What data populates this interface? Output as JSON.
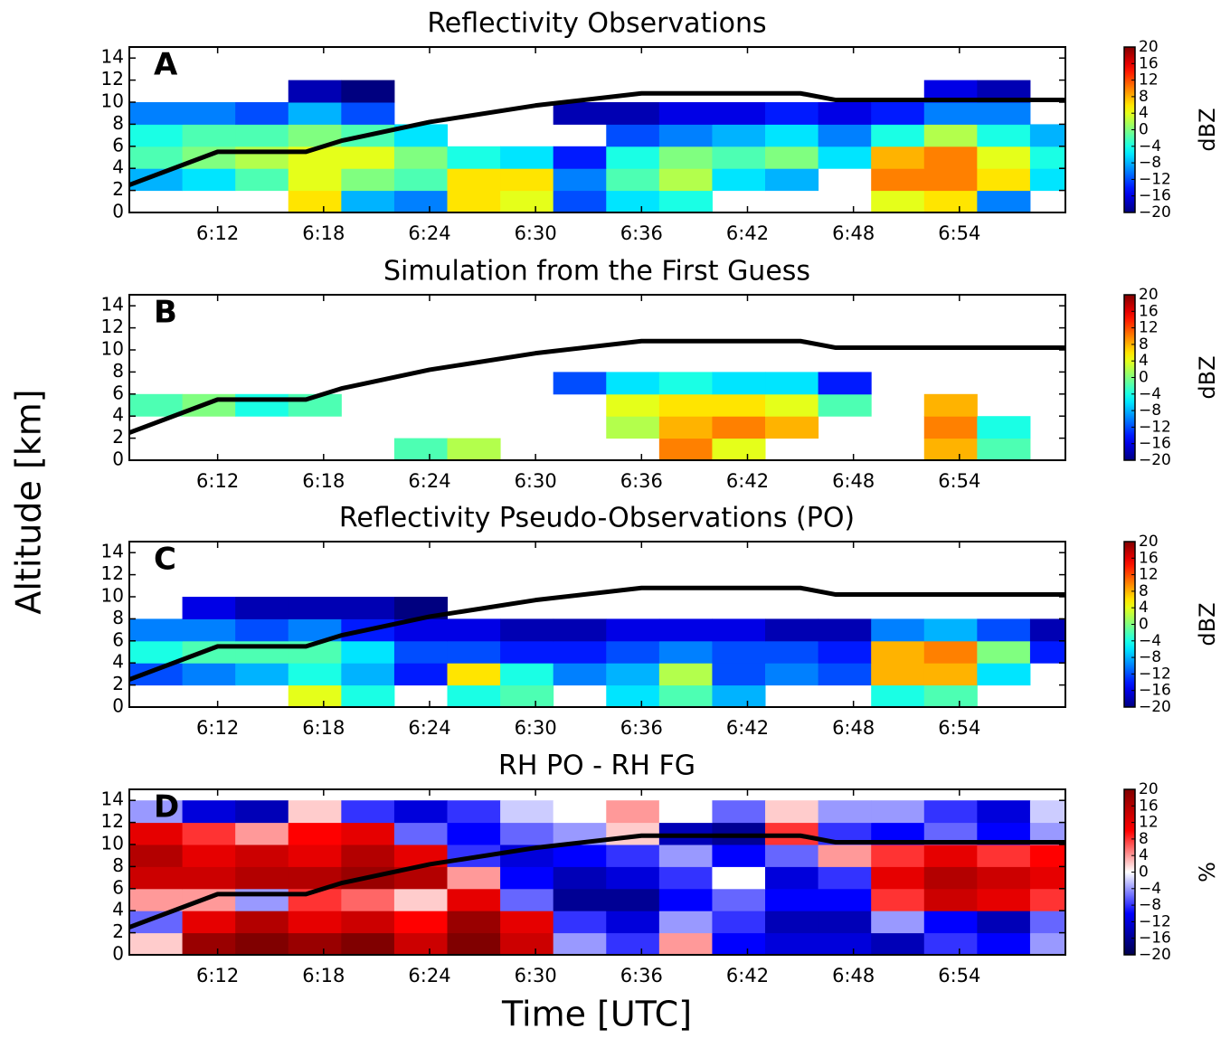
{
  "ylabel": "Altitude [km]",
  "xlabel": "Time [UTC]",
  "chart_data": [
    {
      "type": "heatmap",
      "title": "Reflectivity Observations",
      "panel_label": "A",
      "x": [
        8.5,
        11.5,
        14.5,
        17.5,
        20.5,
        23.5,
        26.5,
        29.5,
        32.5,
        35.5,
        38.5,
        41.5,
        44.5,
        47.5,
        50.5,
        53.5,
        56.5,
        59.5
      ],
      "y": [
        1,
        3,
        5,
        7,
        9,
        11,
        13
      ],
      "z": [
        [
          null,
          null,
          null,
          6,
          -8,
          -10,
          6,
          4,
          -12,
          -6,
          -4,
          null,
          null,
          null,
          4,
          6,
          -10,
          null
        ],
        [
          -8,
          -6,
          -2,
          4,
          0,
          -2,
          6,
          6,
          -10,
          -2,
          2,
          -6,
          -8,
          null,
          10,
          10,
          6,
          -6
        ],
        [
          -2,
          0,
          2,
          4,
          4,
          0,
          -4,
          -6,
          -14,
          -4,
          0,
          -2,
          0,
          -6,
          8,
          10,
          4,
          -4
        ],
        [
          -4,
          -2,
          -2,
          0,
          -2,
          -6,
          null,
          null,
          null,
          -12,
          -10,
          -8,
          -6,
          -10,
          -4,
          2,
          -4,
          -8
        ],
        [
          -10,
          -10,
          -12,
          -8,
          -12,
          null,
          null,
          null,
          -18,
          -18,
          -16,
          -16,
          -14,
          -16,
          -14,
          -10,
          -10,
          null
        ],
        [
          null,
          null,
          null,
          -18,
          -20,
          null,
          null,
          null,
          null,
          null,
          null,
          null,
          null,
          null,
          null,
          -16,
          -18,
          null
        ],
        [
          null,
          null,
          null,
          null,
          null,
          null,
          null,
          null,
          null,
          null,
          null,
          null,
          null,
          null,
          null,
          null,
          null,
          null
        ]
      ],
      "xlim": [
        7,
        60
      ],
      "ylim": [
        0,
        15
      ],
      "xticks": [
        {
          "value": 12,
          "label": "6:12"
        },
        {
          "value": 18,
          "label": "6:18"
        },
        {
          "value": 24,
          "label": "6:24"
        },
        {
          "value": 30,
          "label": "6:30"
        },
        {
          "value": 36,
          "label": "6:36"
        },
        {
          "value": 42,
          "label": "6:42"
        },
        {
          "value": 48,
          "label": "6:48"
        },
        {
          "value": 54,
          "label": "6:54"
        }
      ],
      "yticks": [
        0,
        2,
        4,
        6,
        8,
        10,
        12,
        14
      ],
      "line": {
        "x": [
          7,
          12,
          17,
          19,
          24,
          30,
          36,
          45,
          47,
          60
        ],
        "y": [
          2.5,
          5.5,
          5.5,
          6.5,
          8.2,
          9.7,
          10.8,
          10.8,
          10.2,
          10.2
        ],
        "color": "#000000"
      },
      "colorbar": {
        "label": "dBZ",
        "cmap": "jet",
        "lim": [
          -20,
          20
        ],
        "ticks": [
          20,
          16,
          12,
          8,
          4,
          0,
          {
            "value": -4,
            "label": "−4"
          },
          {
            "value": -8,
            "label": "−8"
          },
          {
            "value": -12,
            "label": "−12"
          },
          {
            "value": -16,
            "label": "−16"
          },
          {
            "value": -20,
            "label": "−20"
          }
        ]
      }
    },
    {
      "type": "heatmap",
      "title": "Simulation from the First Guess",
      "panel_label": "B",
      "x": [
        8.5,
        11.5,
        14.5,
        17.5,
        20.5,
        23.5,
        26.5,
        29.5,
        32.5,
        35.5,
        38.5,
        41.5,
        44.5,
        47.5,
        50.5,
        53.5,
        56.5,
        59.5
      ],
      "y": [
        1,
        3,
        5,
        7,
        9,
        11,
        13
      ],
      "z": [
        [
          null,
          null,
          null,
          null,
          null,
          -2,
          2,
          null,
          null,
          null,
          10,
          4,
          null,
          null,
          null,
          8,
          -2,
          null
        ],
        [
          null,
          null,
          null,
          null,
          null,
          null,
          null,
          null,
          null,
          2,
          8,
          10,
          8,
          null,
          null,
          10,
          -4,
          null
        ],
        [
          -2,
          0,
          -4,
          -2,
          null,
          null,
          null,
          null,
          null,
          4,
          6,
          6,
          4,
          -2,
          null,
          8,
          null,
          null
        ],
        [
          null,
          null,
          null,
          null,
          null,
          null,
          null,
          null,
          -12,
          -6,
          -4,
          -6,
          -6,
          -14,
          null,
          null,
          null,
          null
        ],
        [
          null,
          null,
          null,
          null,
          null,
          null,
          null,
          null,
          null,
          null,
          null,
          null,
          null,
          null,
          null,
          null,
          null,
          null
        ],
        [
          null,
          null,
          null,
          null,
          null,
          null,
          null,
          null,
          null,
          null,
          null,
          null,
          null,
          null,
          null,
          null,
          null,
          null
        ],
        [
          null,
          null,
          null,
          null,
          null,
          null,
          null,
          null,
          null,
          null,
          null,
          null,
          null,
          null,
          null,
          null,
          null,
          null
        ]
      ],
      "xlim": [
        7,
        60
      ],
      "ylim": [
        0,
        15
      ],
      "xticks": [
        {
          "value": 12,
          "label": "6:12"
        },
        {
          "value": 18,
          "label": "6:18"
        },
        {
          "value": 24,
          "label": "6:24"
        },
        {
          "value": 30,
          "label": "6:30"
        },
        {
          "value": 36,
          "label": "6:36"
        },
        {
          "value": 42,
          "label": "6:42"
        },
        {
          "value": 48,
          "label": "6:48"
        },
        {
          "value": 54,
          "label": "6:54"
        }
      ],
      "yticks": [
        0,
        2,
        4,
        6,
        8,
        10,
        12,
        14
      ],
      "line": {
        "x": [
          7,
          12,
          17,
          19,
          24,
          30,
          36,
          45,
          47,
          60
        ],
        "y": [
          2.5,
          5.5,
          5.5,
          6.5,
          8.2,
          9.7,
          10.8,
          10.8,
          10.2,
          10.2
        ],
        "color": "#000000"
      },
      "colorbar": {
        "label": "dBZ",
        "cmap": "jet",
        "lim": [
          -20,
          20
        ],
        "ticks": [
          20,
          16,
          12,
          8,
          4,
          0,
          {
            "value": -4,
            "label": "−4"
          },
          {
            "value": -8,
            "label": "−8"
          },
          {
            "value": -12,
            "label": "−12"
          },
          {
            "value": -16,
            "label": "−16"
          },
          {
            "value": -20,
            "label": "−20"
          }
        ]
      }
    },
    {
      "type": "heatmap",
      "title": "Reflectivity Pseudo-Observations (PO)",
      "panel_label": "C",
      "x": [
        8.5,
        11.5,
        14.5,
        17.5,
        20.5,
        23.5,
        26.5,
        29.5,
        32.5,
        35.5,
        38.5,
        41.5,
        44.5,
        47.5,
        50.5,
        53.5,
        56.5,
        59.5
      ],
      "y": [
        1,
        3,
        5,
        7,
        9,
        11,
        13
      ],
      "z": [
        [
          null,
          null,
          null,
          4,
          -4,
          null,
          -4,
          -2,
          null,
          -6,
          -2,
          -8,
          null,
          null,
          -4,
          -2,
          null,
          null
        ],
        [
          -12,
          -10,
          -8,
          -4,
          -8,
          -14,
          6,
          -4,
          -10,
          -8,
          2,
          -12,
          -10,
          -12,
          8,
          8,
          -6,
          null
        ],
        [
          -4,
          -2,
          -2,
          -2,
          -6,
          -12,
          -12,
          -14,
          -14,
          -12,
          -10,
          -12,
          -12,
          -14,
          8,
          10,
          0,
          -14
        ],
        [
          -10,
          -10,
          -12,
          -10,
          -14,
          -16,
          -16,
          -18,
          -18,
          -16,
          -16,
          -16,
          -18,
          -18,
          -10,
          -8,
          -12,
          -18
        ],
        [
          null,
          -16,
          -18,
          -18,
          -18,
          -20,
          null,
          null,
          null,
          null,
          null,
          null,
          null,
          null,
          null,
          null,
          null,
          null
        ],
        [
          null,
          null,
          null,
          null,
          null,
          null,
          null,
          null,
          null,
          null,
          null,
          null,
          null,
          null,
          null,
          null,
          null,
          null
        ],
        [
          null,
          null,
          null,
          null,
          null,
          null,
          null,
          null,
          null,
          null,
          null,
          null,
          null,
          null,
          null,
          null,
          null,
          null
        ]
      ],
      "xlim": [
        7,
        60
      ],
      "ylim": [
        0,
        15
      ],
      "xticks": [
        {
          "value": 12,
          "label": "6:12"
        },
        {
          "value": 18,
          "label": "6:18"
        },
        {
          "value": 24,
          "label": "6:24"
        },
        {
          "value": 30,
          "label": "6:30"
        },
        {
          "value": 36,
          "label": "6:36"
        },
        {
          "value": 42,
          "label": "6:42"
        },
        {
          "value": 48,
          "label": "6:48"
        },
        {
          "value": 54,
          "label": "6:54"
        }
      ],
      "yticks": [
        0,
        2,
        4,
        6,
        8,
        10,
        12,
        14
      ],
      "line": {
        "x": [
          7,
          12,
          17,
          19,
          24,
          30,
          36,
          45,
          47,
          60
        ],
        "y": [
          2.5,
          5.5,
          5.5,
          6.5,
          8.2,
          9.7,
          10.8,
          10.8,
          10.2,
          10.2
        ],
        "color": "#000000"
      },
      "colorbar": {
        "label": "dBZ",
        "cmap": "jet",
        "lim": [
          -20,
          20
        ],
        "ticks": [
          20,
          16,
          12,
          8,
          4,
          0,
          {
            "value": -4,
            "label": "−4"
          },
          {
            "value": -8,
            "label": "−8"
          },
          {
            "value": -12,
            "label": "−12"
          },
          {
            "value": -16,
            "label": "−16"
          },
          {
            "value": -20,
            "label": "−20"
          }
        ]
      }
    },
    {
      "type": "heatmap",
      "title": "RH PO - RH FG",
      "panel_label": "D",
      "x": [
        8.5,
        11.5,
        14.5,
        17.5,
        20.5,
        23.5,
        26.5,
        29.5,
        32.5,
        35.5,
        38.5,
        41.5,
        44.5,
        47.5,
        50.5,
        53.5,
        56.5,
        59.5
      ],
      "y": [
        1,
        3,
        5,
        7,
        9,
        11,
        13
      ],
      "z": [
        [
          2,
          18,
          20,
          18,
          20,
          14,
          20,
          14,
          -4,
          -8,
          4,
          -10,
          -12,
          -12,
          -14,
          -8,
          -10,
          -4
        ],
        [
          -6,
          12,
          16,
          12,
          14,
          10,
          18,
          12,
          -8,
          -12,
          -4,
          -8,
          -14,
          -14,
          -4,
          -10,
          -14,
          -6
        ],
        [
          4,
          4,
          -4,
          8,
          6,
          2,
          12,
          -6,
          -16,
          -16,
          -10,
          -6,
          -10,
          -10,
          8,
          14,
          12,
          8
        ],
        [
          14,
          14,
          16,
          16,
          18,
          16,
          4,
          -10,
          -14,
          -12,
          -8,
          0,
          -12,
          -8,
          12,
          16,
          14,
          12
        ],
        [
          16,
          12,
          14,
          12,
          16,
          12,
          -8,
          -12,
          -10,
          -8,
          -4,
          -10,
          -6,
          4,
          8,
          12,
          8,
          10
        ],
        [
          12,
          8,
          4,
          10,
          12,
          -6,
          -10,
          -6,
          -4,
          2,
          -14,
          -16,
          8,
          -8,
          -10,
          -6,
          -10,
          -4
        ],
        [
          -4,
          -12,
          -14,
          2,
          -8,
          -12,
          -8,
          -2,
          0,
          4,
          0,
          -6,
          2,
          -4,
          -4,
          -8,
          -12,
          -2
        ]
      ],
      "xlim": [
        7,
        60
      ],
      "ylim": [
        0,
        15
      ],
      "xticks": [
        {
          "value": 12,
          "label": "6:12"
        },
        {
          "value": 18,
          "label": "6:18"
        },
        {
          "value": 24,
          "label": "6:24"
        },
        {
          "value": 30,
          "label": "6:30"
        },
        {
          "value": 36,
          "label": "6:36"
        },
        {
          "value": 42,
          "label": "6:42"
        },
        {
          "value": 48,
          "label": "6:48"
        },
        {
          "value": 54,
          "label": "6:54"
        }
      ],
      "yticks": [
        0,
        2,
        4,
        6,
        8,
        10,
        12,
        14
      ],
      "line": {
        "x": [
          7,
          12,
          17,
          19,
          24,
          30,
          36,
          45,
          47,
          60
        ],
        "y": [
          2.5,
          5.5,
          5.5,
          6.5,
          8.2,
          9.7,
          10.8,
          10.8,
          10.2,
          10.2
        ],
        "color": "#000000"
      },
      "colorbar": {
        "label": "%",
        "cmap": "seismic",
        "lim": [
          -20,
          20
        ],
        "ticks": [
          20,
          16,
          12,
          8,
          4,
          0,
          {
            "value": -4,
            "label": "−4"
          },
          {
            "value": -8,
            "label": "−8"
          },
          {
            "value": -12,
            "label": "−12"
          },
          {
            "value": -16,
            "label": "−16"
          },
          {
            "value": -20,
            "label": "−20"
          }
        ]
      }
    }
  ]
}
